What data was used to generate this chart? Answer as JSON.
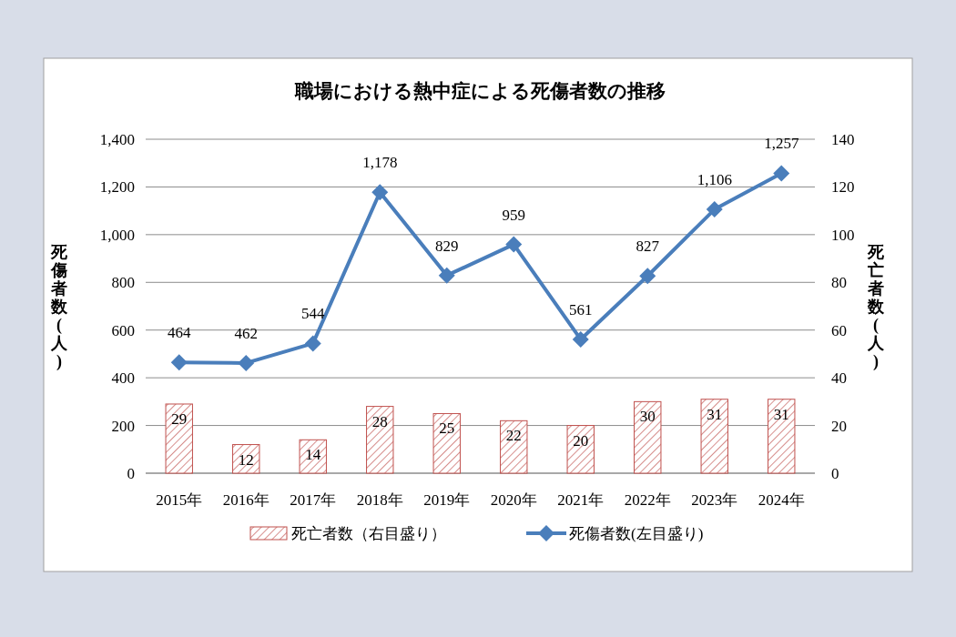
{
  "chart_data": {
    "type": "bar",
    "title": "職場における熱中症による死傷者数の推移",
    "ylabel": "死傷者数(人)",
    "y2label": "死亡者数(人)",
    "categories": [
      "2015年",
      "2016年",
      "2017年",
      "2018年",
      "2019年",
      "2020年",
      "2021年",
      "2022年",
      "2023年",
      "2024年"
    ],
    "series": [
      {
        "name": "死亡者数（右目盛り）",
        "axis": "y2",
        "color": "#c0504d",
        "values": [
          29,
          12,
          14,
          28,
          25,
          22,
          20,
          30,
          31,
          31
        ],
        "value_labels": [
          "29",
          "12",
          "14",
          "28",
          "25",
          "22",
          "20",
          "30",
          "31",
          "31"
        ]
      },
      {
        "name": "死傷者数(左目盛り)",
        "type": "line",
        "color": "#4a7ebb",
        "marker": "diamond",
        "values": [
          464,
          462,
          544,
          1178,
          829,
          959,
          561,
          827,
          1106,
          1257
        ],
        "value_labels": [
          "464",
          "462",
          "544",
          "1,178",
          "829",
          "959",
          "561",
          "827",
          "1,106",
          "1,257"
        ]
      }
    ],
    "ylim": [
      0,
      1400
    ],
    "yticks": [
      0,
      200,
      400,
      600,
      800,
      {
        "value": 1000,
        "label": "1,000"
      },
      {
        "value": 1200,
        "label": "1,200"
      },
      {
        "value": 1400,
        "label": "1,400"
      }
    ],
    "y2lim": [
      0,
      140
    ],
    "y2ticks": [
      0,
      20,
      40,
      60,
      80,
      100,
      120,
      140
    ],
    "grid": "y",
    "legend": "bottom"
  }
}
